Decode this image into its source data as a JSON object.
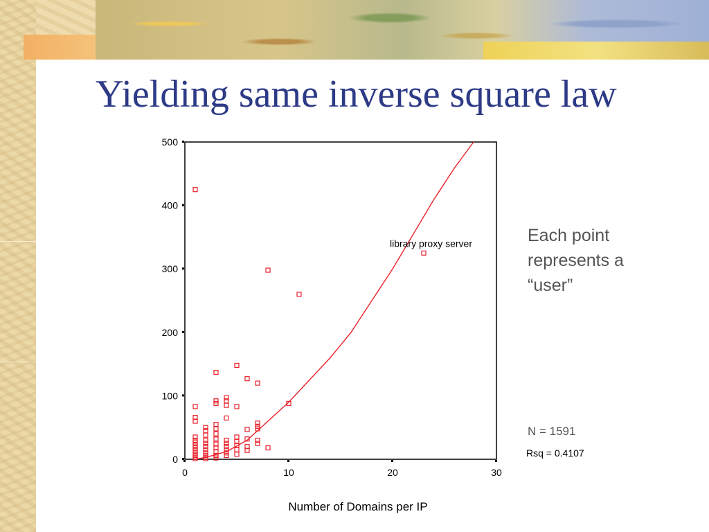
{
  "slide": {
    "title": "Yielding same inverse square law",
    "note_lines": [
      "Each point",
      "represents a",
      "“user”"
    ],
    "n_label": "N = 1591",
    "rsq_label": "Rsq = 0.4107"
  },
  "colors": {
    "title": "#2d3a86",
    "marker": "#e8202a",
    "fit": "#e8202a",
    "note": "#555555"
  },
  "chart_data": {
    "type": "scatter",
    "title": "",
    "xlabel": "Number of Domains per IP",
    "ylabel": "",
    "xlim": [
      0,
      30
    ],
    "ylim": [
      0,
      500
    ],
    "xticks": [
      0,
      10,
      20,
      30
    ],
    "yticks": [
      0,
      100,
      200,
      300,
      400,
      500
    ],
    "grid": false,
    "annotations": [
      {
        "text": "library proxy server",
        "x": 23,
        "y": 325
      }
    ],
    "series": [
      {
        "marker": "square",
        "points": [
          [
            1,
            425
          ],
          [
            1,
            83
          ],
          [
            1,
            66
          ],
          [
            1,
            60
          ],
          [
            1,
            35
          ],
          [
            1,
            30
          ],
          [
            1,
            26
          ],
          [
            1,
            22
          ],
          [
            1,
            18
          ],
          [
            1,
            14
          ],
          [
            1,
            10
          ],
          [
            1,
            6
          ],
          [
            1,
            3
          ],
          [
            1,
            1
          ],
          [
            2,
            50
          ],
          [
            2,
            45
          ],
          [
            2,
            38
          ],
          [
            2,
            30
          ],
          [
            2,
            25
          ],
          [
            2,
            20
          ],
          [
            2,
            15
          ],
          [
            2,
            10
          ],
          [
            2,
            6
          ],
          [
            2,
            3
          ],
          [
            2,
            1
          ],
          [
            3,
            137
          ],
          [
            3,
            92
          ],
          [
            3,
            88
          ],
          [
            3,
            55
          ],
          [
            3,
            48
          ],
          [
            3,
            40
          ],
          [
            3,
            32
          ],
          [
            3,
            24
          ],
          [
            3,
            18
          ],
          [
            3,
            12
          ],
          [
            3,
            6
          ],
          [
            3,
            2
          ],
          [
            4,
            97
          ],
          [
            4,
            92
          ],
          [
            4,
            85
          ],
          [
            4,
            65
          ],
          [
            4,
            30
          ],
          [
            4,
            25
          ],
          [
            4,
            20
          ],
          [
            4,
            15
          ],
          [
            4,
            10
          ],
          [
            4,
            6
          ],
          [
            5,
            148
          ],
          [
            5,
            83
          ],
          [
            5,
            35
          ],
          [
            5,
            28
          ],
          [
            5,
            22
          ],
          [
            5,
            15
          ],
          [
            5,
            8
          ],
          [
            6,
            127
          ],
          [
            6,
            32
          ],
          [
            6,
            20
          ],
          [
            6,
            14
          ],
          [
            6,
            47
          ],
          [
            7,
            120
          ],
          [
            7,
            57
          ],
          [
            7,
            52
          ],
          [
            7,
            48
          ],
          [
            7,
            30
          ],
          [
            7,
            25
          ],
          [
            8,
            298
          ],
          [
            8,
            18
          ],
          [
            10,
            88
          ],
          [
            11,
            260
          ],
          [
            23,
            325
          ]
        ]
      }
    ],
    "fit": {
      "label": "inverse square law",
      "points": [
        [
          1,
          0
        ],
        [
          2,
          3
        ],
        [
          4,
          12
        ],
        [
          6,
          30
        ],
        [
          8,
          60
        ],
        [
          10,
          90
        ],
        [
          12,
          125
        ],
        [
          14,
          160
        ],
        [
          16,
          200
        ],
        [
          18,
          250
        ],
        [
          20,
          300
        ],
        [
          22,
          355
        ],
        [
          24,
          410
        ],
        [
          26,
          460
        ],
        [
          27.8,
          500
        ]
      ]
    }
  }
}
